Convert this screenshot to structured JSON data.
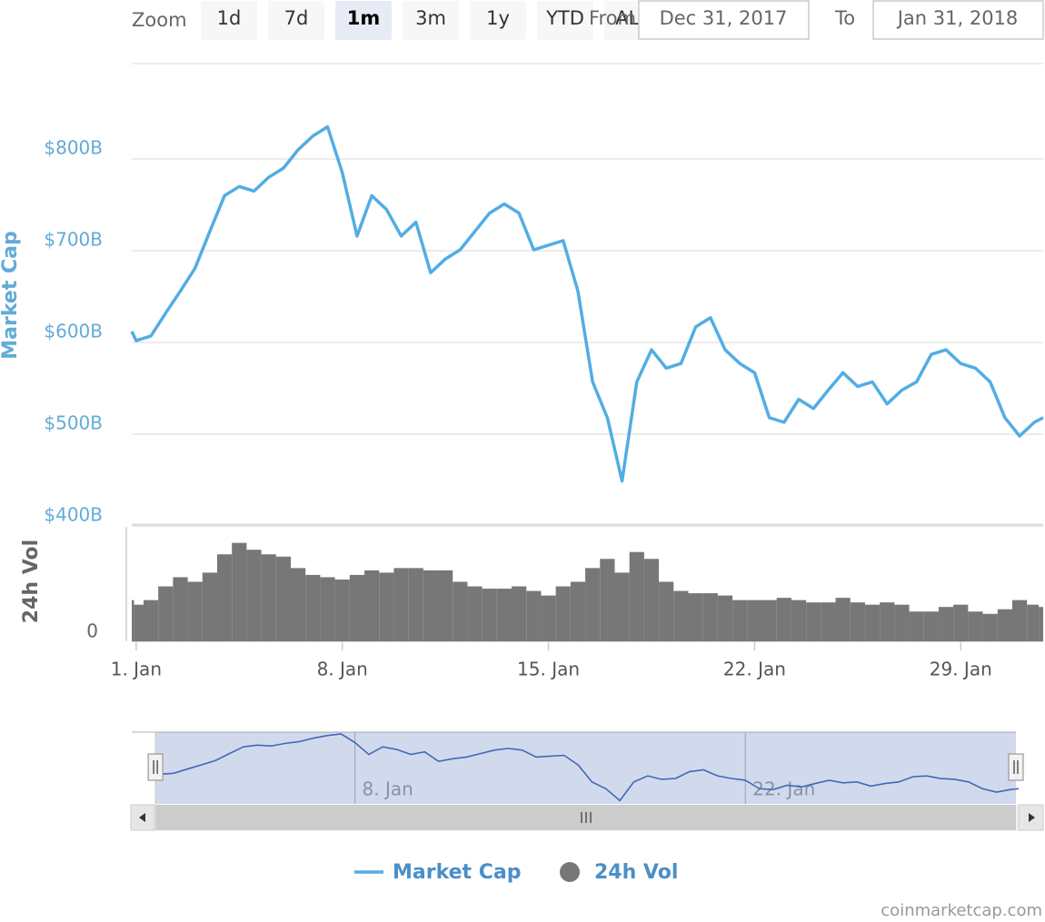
{
  "range_selector": {
    "zoom_label": "Zoom",
    "buttons": [
      "1d",
      "7d",
      "1m",
      "3m",
      "1y",
      "YTD",
      "ALL"
    ],
    "selected_index": 2,
    "from_label": "From",
    "from_value": "Dec 31, 2017",
    "to_label": "To",
    "to_value": "Jan 31, 2018"
  },
  "chart_data": {
    "type": "line",
    "x": [
      0.85,
      1,
      1.5,
      2,
      2.5,
      3,
      3.5,
      4,
      4.5,
      5,
      5.5,
      6,
      6.5,
      7,
      7.5,
      8,
      8.5,
      9,
      9.5,
      10,
      10.5,
      11,
      11.5,
      12,
      12.5,
      13,
      13.5,
      14,
      14.5,
      15,
      15.5,
      16,
      16.5,
      17,
      17.5,
      18,
      18.5,
      19,
      19.5,
      20,
      20.5,
      21,
      21.5,
      22,
      22.5,
      23,
      23.5,
      24,
      24.5,
      25,
      25.5,
      26,
      26.5,
      27,
      27.5,
      28,
      28.5,
      29,
      29.5,
      30,
      30.5,
      31,
      31.5,
      31.8
    ],
    "series": [
      {
        "name": "Market Cap",
        "color": "#52ade3",
        "values": [
          612,
          602,
          607,
          632,
          656,
          681,
          721,
          760,
          770,
          765,
          780,
          790,
          810,
          825,
          835,
          785,
          716,
          760,
          745,
          716,
          731,
          676,
          691,
          701,
          721,
          741,
          751,
          741,
          701,
          706,
          711,
          656,
          557,
          518,
          449,
          557,
          592,
          572,
          577,
          617,
          627,
          592,
          577,
          567,
          518,
          513,
          538,
          528,
          548,
          567,
          552,
          557,
          533,
          548,
          557,
          587,
          592,
          577,
          572,
          557,
          518,
          498,
          513,
          518
        ]
      },
      {
        "name": "24h Vol",
        "type": "column",
        "axis": "y2",
        "color": "#777777",
        "values": [
          18,
          16,
          18,
          24,
          28,
          26,
          30,
          38,
          43,
          40,
          38,
          37,
          32,
          29,
          28,
          27,
          29,
          31,
          30,
          32,
          32,
          31,
          31,
          26,
          24,
          23,
          23,
          24,
          22,
          20,
          24,
          26,
          32,
          36,
          30,
          39,
          36,
          26,
          22,
          21,
          21,
          20,
          18,
          18,
          18,
          19,
          18,
          17,
          17,
          19,
          17,
          16,
          17,
          16,
          13,
          13,
          15,
          16,
          13,
          12,
          14,
          18,
          16,
          15
        ]
      }
    ],
    "xlim": [
      0.85,
      31.8
    ],
    "xticks": [
      {
        "value": 1,
        "label": "1. Jan"
      },
      {
        "value": 8,
        "label": "8. Jan"
      },
      {
        "value": 15,
        "label": "15. Jan"
      },
      {
        "value": 22,
        "label": "22. Jan"
      },
      {
        "value": 29,
        "label": "29. Jan"
      }
    ],
    "ylim": [
      400,
      900
    ],
    "yticks": [
      {
        "value": 400,
        "label": "$400B"
      },
      {
        "value": 500,
        "label": "$500B"
      },
      {
        "value": 600,
        "label": "$600B"
      },
      {
        "value": 700,
        "label": "$700B"
      },
      {
        "value": 800,
        "label": "$800B"
      }
    ],
    "ylabel": "Market Cap",
    "y2lim": [
      0,
      50
    ],
    "y2ticks": [
      0
    ],
    "y2label": "24h Vol",
    "grid": true,
    "legend": "bottom",
    "navigator": {
      "xlim": [
        0,
        31.7
      ],
      "ylim": [
        430,
        845
      ],
      "color": "#335cad",
      "xticks": [
        {
          "value": 8,
          "label": "8. Jan"
        },
        {
          "value": 22,
          "label": "22. Jan"
        }
      ]
    }
  },
  "credits": "coinmarketcap.com"
}
